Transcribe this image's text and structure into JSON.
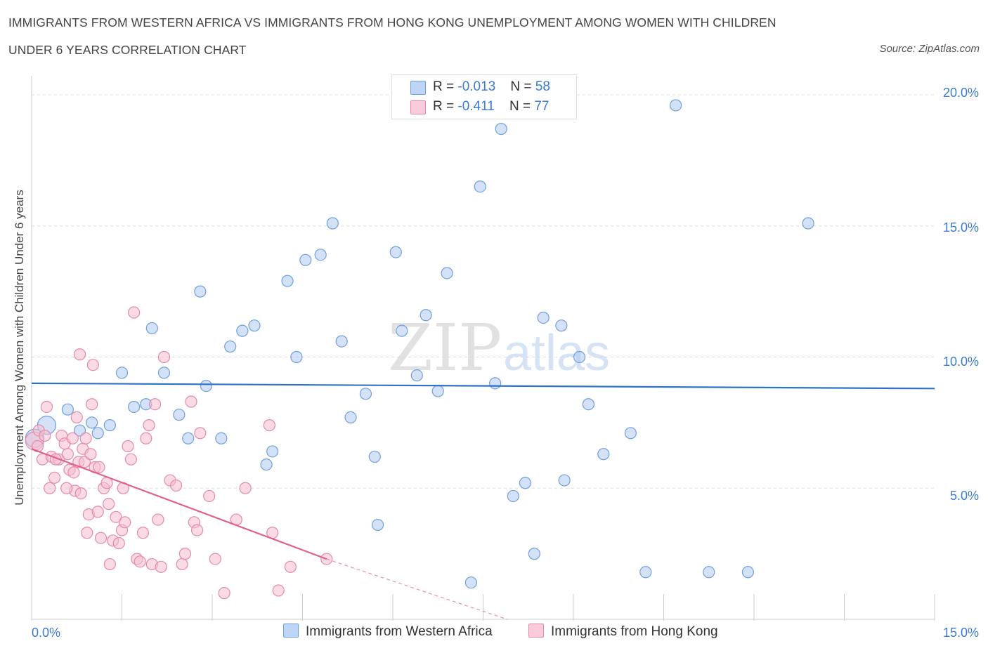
{
  "header": {
    "title_line1": "IMMIGRANTS FROM WESTERN AFRICA VS IMMIGRANTS FROM HONG KONG UNEMPLOYMENT AMONG WOMEN WITH CHILDREN",
    "title_line2": "UNDER 6 YEARS CORRELATION CHART",
    "source": "Source: ZipAtlas.com"
  },
  "legend": {
    "blue": {
      "r_label": "R = ",
      "r_value": "-0.013",
      "n_label": "N = ",
      "n_value": "58"
    },
    "pink": {
      "r_label": "R = ",
      "r_value": "-0.411",
      "n_label": "N = ",
      "n_value": "77"
    }
  },
  "colors": {
    "blue_fill": "#aecbf0",
    "blue_stroke": "#6f9fdc",
    "blue_line": "#2f72c8",
    "pink_fill": "#f6bdd0",
    "pink_stroke": "#e38aaa",
    "pink_line": "#e0608e",
    "tick_text": "#3a7bd5",
    "grid": "#dddddd"
  },
  "watermark": {
    "zip": "ZIP",
    "atlas": "atlas"
  },
  "chart_data": {
    "type": "scatter",
    "title": "IMMIGRANTS FROM WESTERN AFRICA VS IMMIGRANTS FROM HONG KONG UNEMPLOYMENT AMONG WOMEN WITH CHILDREN UNDER 6 YEARS CORRELATION CHART",
    "xlabel": "",
    "ylabel": "Unemployment Among Women with Children Under 6 years",
    "xlim": [
      0,
      15
    ],
    "ylim": [
      0,
      20
    ],
    "x_tick_labels": [
      "0.0%",
      "15.0%"
    ],
    "y_ticks": [
      5,
      10,
      15,
      20
    ],
    "y_tick_labels": [
      "5.0%",
      "10.0%",
      "15.0%",
      "20.0%"
    ],
    "grid": true,
    "series": [
      {
        "name": "Immigrants from Western Africa",
        "color": "blue",
        "trend": {
          "x": [
            0,
            15
          ],
          "y": [
            9.0,
            8.8
          ]
        },
        "points": [
          {
            "x": 0.05,
            "y": 6.9,
            "big": true
          },
          {
            "x": 0.25,
            "y": 7.4,
            "big": true
          },
          {
            "x": 0.6,
            "y": 8.0
          },
          {
            "x": 0.8,
            "y": 7.2
          },
          {
            "x": 1.0,
            "y": 7.5
          },
          {
            "x": 1.1,
            "y": 7.1
          },
          {
            "x": 1.3,
            "y": 7.4
          },
          {
            "x": 1.5,
            "y": 9.4
          },
          {
            "x": 1.7,
            "y": 8.1
          },
          {
            "x": 1.9,
            "y": 8.2
          },
          {
            "x": 2.0,
            "y": 11.1
          },
          {
            "x": 2.2,
            "y": 9.4
          },
          {
            "x": 2.45,
            "y": 7.8
          },
          {
            "x": 2.6,
            "y": 6.9
          },
          {
            "x": 2.8,
            "y": 12.5
          },
          {
            "x": 2.9,
            "y": 8.9
          },
          {
            "x": 3.15,
            "y": 6.9
          },
          {
            "x": 3.3,
            "y": 10.4
          },
          {
            "x": 3.5,
            "y": 11.0
          },
          {
            "x": 3.7,
            "y": 11.2
          },
          {
            "x": 3.9,
            "y": 5.9
          },
          {
            "x": 4.0,
            "y": 6.4
          },
          {
            "x": 4.25,
            "y": 12.9
          },
          {
            "x": 4.4,
            "y": 10.0
          },
          {
            "x": 4.55,
            "y": 13.7
          },
          {
            "x": 4.8,
            "y": 13.9
          },
          {
            "x": 5.0,
            "y": 15.1
          },
          {
            "x": 5.15,
            "y": 10.6
          },
          {
            "x": 5.3,
            "y": 7.7
          },
          {
            "x": 5.55,
            "y": 8.6
          },
          {
            "x": 5.7,
            "y": 6.2
          },
          {
            "x": 5.75,
            "y": 3.6
          },
          {
            "x": 6.05,
            "y": 14.0
          },
          {
            "x": 6.15,
            "y": 11.0
          },
          {
            "x": 6.4,
            "y": 9.3
          },
          {
            "x": 6.55,
            "y": 11.6
          },
          {
            "x": 6.75,
            "y": 8.7
          },
          {
            "x": 6.9,
            "y": 13.2
          },
          {
            "x": 7.3,
            "y": 1.4
          },
          {
            "x": 7.45,
            "y": 16.5
          },
          {
            "x": 7.7,
            "y": 9.0
          },
          {
            "x": 7.8,
            "y": 18.7
          },
          {
            "x": 8.0,
            "y": 4.7
          },
          {
            "x": 8.2,
            "y": 5.2
          },
          {
            "x": 8.35,
            "y": 2.5
          },
          {
            "x": 8.5,
            "y": 11.5
          },
          {
            "x": 8.8,
            "y": 11.2
          },
          {
            "x": 8.85,
            "y": 5.3
          },
          {
            "x": 9.1,
            "y": 10.0
          },
          {
            "x": 9.25,
            "y": 8.2
          },
          {
            "x": 9.5,
            "y": 6.3
          },
          {
            "x": 9.95,
            "y": 7.1
          },
          {
            "x": 10.2,
            "y": 1.8
          },
          {
            "x": 10.7,
            "y": 19.6
          },
          {
            "x": 11.25,
            "y": 1.8
          },
          {
            "x": 11.9,
            "y": 1.8
          },
          {
            "x": 12.9,
            "y": 15.1
          }
        ]
      },
      {
        "name": "Immigrants from Hong Kong",
        "color": "pink",
        "trend": {
          "x": [
            0,
            4.9
          ],
          "y": [
            6.5,
            2.3
          ]
        },
        "trend_dashed": {
          "x": [
            4.9,
            7.9
          ],
          "y": [
            2.3,
            0.0
          ]
        },
        "points": [
          {
            "x": 0.05,
            "y": 6.8,
            "big": true
          },
          {
            "x": 0.1,
            "y": 6.6
          },
          {
            "x": 0.12,
            "y": 7.2
          },
          {
            "x": 0.18,
            "y": 6.1
          },
          {
            "x": 0.22,
            "y": 7.0
          },
          {
            "x": 0.25,
            "y": 8.1
          },
          {
            "x": 0.3,
            "y": 5.0
          },
          {
            "x": 0.33,
            "y": 6.2
          },
          {
            "x": 0.38,
            "y": 5.4
          },
          {
            "x": 0.45,
            "y": 6.1
          },
          {
            "x": 0.5,
            "y": 7.0
          },
          {
            "x": 0.55,
            "y": 6.7
          },
          {
            "x": 0.6,
            "y": 6.3
          },
          {
            "x": 0.63,
            "y": 5.7
          },
          {
            "x": 0.68,
            "y": 6.9
          },
          {
            "x": 0.72,
            "y": 4.9
          },
          {
            "x": 0.75,
            "y": 7.7
          },
          {
            "x": 0.78,
            "y": 6.0
          },
          {
            "x": 0.8,
            "y": 10.1
          },
          {
            "x": 0.82,
            "y": 4.8
          },
          {
            "x": 0.85,
            "y": 6.5
          },
          {
            "x": 0.88,
            "y": 6.0
          },
          {
            "x": 0.9,
            "y": 6.9
          },
          {
            "x": 0.95,
            "y": 4.0
          },
          {
            "x": 0.98,
            "y": 6.3
          },
          {
            "x": 1.0,
            "y": 8.2
          },
          {
            "x": 1.05,
            "y": 5.8
          },
          {
            "x": 1.1,
            "y": 4.1
          },
          {
            "x": 1.15,
            "y": 3.1
          },
          {
            "x": 1.2,
            "y": 5.0
          },
          {
            "x": 1.25,
            "y": 5.2
          },
          {
            "x": 1.28,
            "y": 4.4
          },
          {
            "x": 1.3,
            "y": 2.1
          },
          {
            "x": 1.35,
            "y": 3.0
          },
          {
            "x": 1.4,
            "y": 3.9
          },
          {
            "x": 1.45,
            "y": 2.9
          },
          {
            "x": 1.5,
            "y": 3.4
          },
          {
            "x": 1.55,
            "y": 3.7
          },
          {
            "x": 1.6,
            "y": 6.6
          },
          {
            "x": 1.65,
            "y": 6.1
          },
          {
            "x": 1.7,
            "y": 11.7
          },
          {
            "x": 1.75,
            "y": 2.3
          },
          {
            "x": 1.8,
            "y": 2.2
          },
          {
            "x": 1.85,
            "y": 3.3
          },
          {
            "x": 1.9,
            "y": 6.9
          },
          {
            "x": 1.95,
            "y": 7.4
          },
          {
            "x": 2.0,
            "y": 2.1
          },
          {
            "x": 2.05,
            "y": 8.2
          },
          {
            "x": 2.1,
            "y": 3.8
          },
          {
            "x": 2.15,
            "y": 2.0
          },
          {
            "x": 2.2,
            "y": 10.0
          },
          {
            "x": 2.3,
            "y": 5.3
          },
          {
            "x": 2.4,
            "y": 5.1
          },
          {
            "x": 2.5,
            "y": 2.1
          },
          {
            "x": 2.55,
            "y": 2.5
          },
          {
            "x": 2.65,
            "y": 8.3
          },
          {
            "x": 2.7,
            "y": 3.7
          },
          {
            "x": 2.75,
            "y": 3.4
          },
          {
            "x": 2.8,
            "y": 7.1
          },
          {
            "x": 2.95,
            "y": 4.7
          },
          {
            "x": 3.05,
            "y": 2.3
          },
          {
            "x": 3.2,
            "y": 1.0
          },
          {
            "x": 3.4,
            "y": 3.8
          },
          {
            "x": 3.55,
            "y": 5.0
          },
          {
            "x": 3.95,
            "y": 7.4
          },
          {
            "x": 4.0,
            "y": 3.3
          },
          {
            "x": 4.1,
            "y": 1.1
          },
          {
            "x": 4.3,
            "y": 2.0
          },
          {
            "x": 4.9,
            "y": 2.3
          },
          {
            "x": 0.58,
            "y": 5.0
          },
          {
            "x": 1.02,
            "y": 9.7
          },
          {
            "x": 0.4,
            "y": 6.1
          },
          {
            "x": 1.52,
            "y": 5.0
          },
          {
            "x": 0.92,
            "y": 3.3
          },
          {
            "x": 1.12,
            "y": 5.8
          },
          {
            "x": 0.7,
            "y": 5.6
          }
        ]
      }
    ]
  },
  "bottom_legend": {
    "blue_label": "Immigrants from Western Africa",
    "pink_label": "Immigrants from Hong Kong"
  }
}
